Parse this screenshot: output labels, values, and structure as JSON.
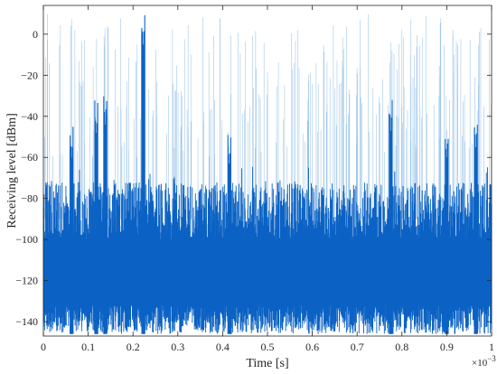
{
  "chart_data": {
    "type": "line",
    "title": "",
    "xlabel": "Time [s]",
    "ylabel": "Receiving level [dBm]",
    "x_exponent_label": "×10",
    "x_exponent_power": "−3",
    "xlim": [
      0,
      1
    ],
    "ylim": [
      -147,
      14
    ],
    "x_ticks": [
      0,
      0.1,
      0.2,
      0.3,
      0.4,
      0.5,
      0.6,
      0.7,
      0.8,
      0.9,
      1
    ],
    "x_tick_labels": [
      "0",
      "0.1",
      "0.2",
      "0.3",
      "0.4",
      "0.5",
      "0.6",
      "0.7",
      "0.8",
      "0.9",
      "1"
    ],
    "y_ticks": [
      0,
      -20,
      -40,
      -60,
      -80,
      -100,
      -120,
      -140
    ],
    "y_tick_labels": [
      "0",
      "−20",
      "−40",
      "−60",
      "−80",
      "−100",
      "−120",
      "−140"
    ],
    "grid": false,
    "series_color": "#0b62c4",
    "series_color_light": "#8fbde6",
    "noise_floor_range": [
      -145,
      -75
    ],
    "peaks": [
      {
        "x": 0.063,
        "y": -60
      },
      {
        "x": 0.118,
        "y": -48
      },
      {
        "x": 0.138,
        "y": -44
      },
      {
        "x": 0.223,
        "y": -5
      },
      {
        "x": 0.415,
        "y": -63
      },
      {
        "x": 0.775,
        "y": -47
      },
      {
        "x": 0.9,
        "y": -60
      },
      {
        "x": 0.965,
        "y": -55
      }
    ]
  }
}
